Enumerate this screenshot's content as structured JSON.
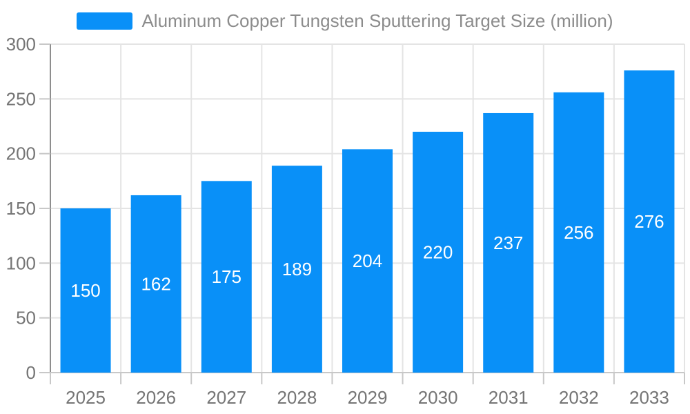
{
  "legend": {
    "label": "Aluminum Copper Tungsten Sputtering Target Size (million)",
    "text_color": "#8c8c8c"
  },
  "chart_data": {
    "type": "bar",
    "categories": [
      "2025",
      "2026",
      "2027",
      "2028",
      "2029",
      "2030",
      "2031",
      "2032",
      "2033"
    ],
    "series": [
      {
        "name": "Aluminum Copper Tungsten Sputtering Target Size (million)",
        "values": [
          150,
          162,
          175,
          189,
          204,
          220,
          237,
          256,
          276
        ]
      }
    ],
    "title": "",
    "xlabel": "",
    "ylabel": "",
    "ylim": [
      0,
      300
    ],
    "y_ticks": [
      0,
      50,
      100,
      150,
      200,
      250,
      300
    ],
    "grid": true,
    "legend_position": "top-center",
    "colors": {
      "bar": "#0990f8",
      "bar_value_label": "#ffffff",
      "axis_label": "#757575",
      "grid_line": "#e4e4e4",
      "y_axis_line": "#8e8e8e",
      "x_axis_line": "#c8c8c8",
      "tick": "#c8c8c8"
    }
  }
}
